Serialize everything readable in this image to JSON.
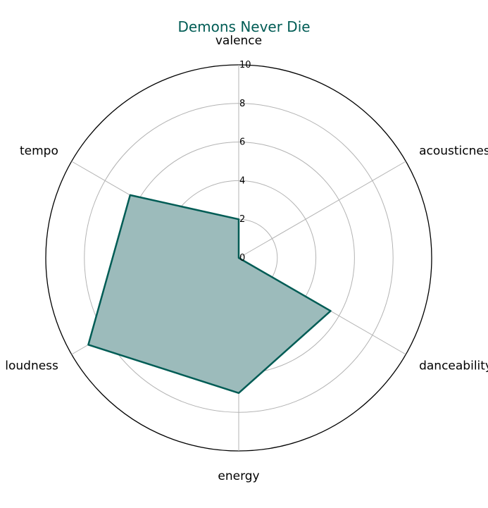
{
  "chart_data": {
    "type": "radar",
    "title": "Demons Never Die",
    "axes": [
      "valence",
      "acousticness",
      "danceability",
      "energy",
      "loudness",
      "tempo"
    ],
    "series": [
      {
        "values": [
          2.0,
          0.0,
          5.5,
          7.0,
          9.0,
          6.5
        ]
      }
    ],
    "rlim": [
      0,
      10
    ],
    "r_ticks": [
      "0",
      "2",
      "4",
      "6",
      "8",
      "10"
    ],
    "grid": true,
    "colors": {
      "line": "#005c55",
      "fill": "#9cbbbb",
      "grid": "#b3b3b3",
      "outer": "#000000"
    }
  }
}
